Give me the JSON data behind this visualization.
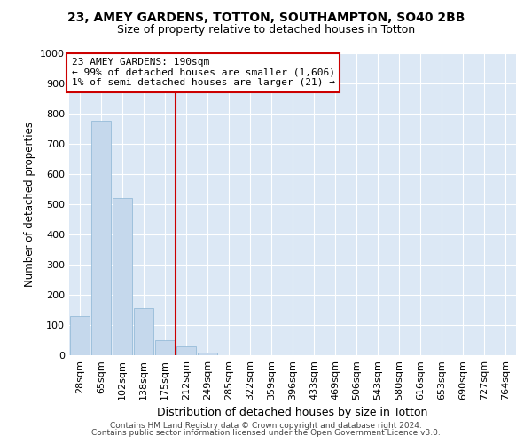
{
  "title1": "23, AMEY GARDENS, TOTTON, SOUTHAMPTON, SO40 2BB",
  "title2": "Size of property relative to detached houses in Totton",
  "xlabel": "Distribution of detached houses by size in Totton",
  "ylabel": "Number of detached properties",
  "footer1": "Contains HM Land Registry data © Crown copyright and database right 2024.",
  "footer2": "Contains public sector information licensed under the Open Government Licence v3.0.",
  "annotation_line1": "23 AMEY GARDENS: 190sqm",
  "annotation_line2": "← 99% of detached houses are smaller (1,606)",
  "annotation_line3": "1% of semi-detached houses are larger (21) →",
  "bar_color": "#c5d8ec",
  "bar_edge_color": "#8ab4d4",
  "vline_color": "#cc0000",
  "annotation_box_edgecolor": "#cc0000",
  "background_color": "#dce8f5",
  "categories": [
    "28sqm",
    "65sqm",
    "102sqm",
    "138sqm",
    "175sqm",
    "212sqm",
    "249sqm",
    "285sqm",
    "322sqm",
    "359sqm",
    "396sqm",
    "433sqm",
    "469sqm",
    "506sqm",
    "543sqm",
    "580sqm",
    "616sqm",
    "653sqm",
    "690sqm",
    "727sqm",
    "764sqm"
  ],
  "values": [
    130,
    775,
    520,
    155,
    50,
    30,
    10,
    0,
    0,
    0,
    0,
    0,
    0,
    0,
    0,
    0,
    0,
    0,
    0,
    0,
    0
  ],
  "ylim": [
    0,
    1000
  ],
  "yticks": [
    0,
    100,
    200,
    300,
    400,
    500,
    600,
    700,
    800,
    900,
    1000
  ],
  "vline_x": 4.5,
  "title1_fontsize": 10,
  "title2_fontsize": 9,
  "xlabel_fontsize": 9,
  "ylabel_fontsize": 8.5,
  "tick_fontsize": 8,
  "annotation_fontsize": 8,
  "footer_fontsize": 6.5
}
